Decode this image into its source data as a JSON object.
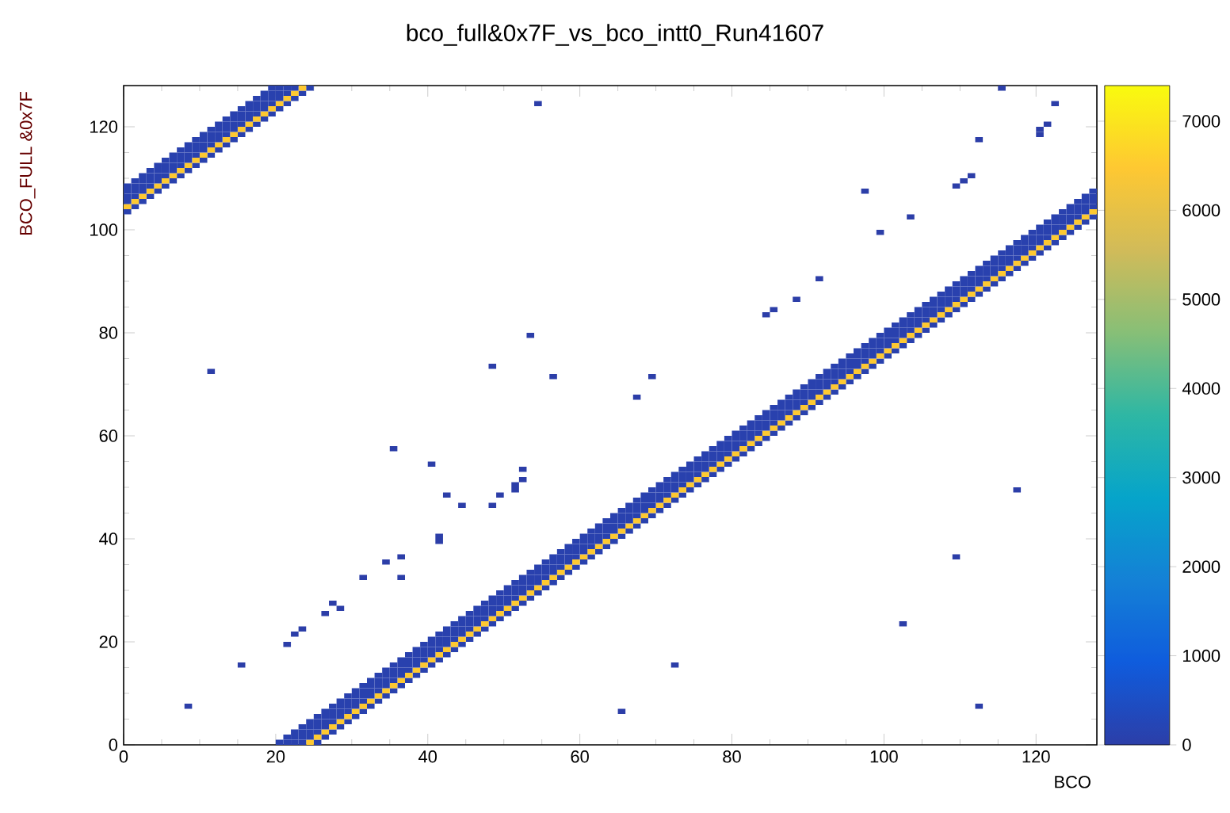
{
  "chart_data": {
    "type": "scatter",
    "title": "bco_full&0x7F_vs_bco_intt0_Run41607",
    "xlabel": "BCO",
    "ylabel": "BCO_FULL &0x7F",
    "xlim": [
      0,
      128
    ],
    "ylim": [
      0,
      128
    ],
    "xticks": [
      0,
      20,
      40,
      60,
      80,
      100,
      120
    ],
    "yticks": [
      0,
      20,
      40,
      60,
      80,
      100,
      120
    ],
    "clim": [
      0,
      7400
    ],
    "cticks": [
      0,
      1000,
      2000,
      3000,
      4000,
      5000,
      6000,
      7000
    ],
    "x": [
      0.5,
      1.5,
      2.5,
      3.5,
      4.5,
      5.5,
      6.5,
      7.5,
      8.5,
      9.5,
      10.5,
      11.5,
      12.5,
      13.5,
      14.5,
      15.5,
      16.5,
      17.5,
      18.5,
      19.5,
      20.5,
      21.5,
      22.5,
      23.5,
      24.5,
      25.5,
      26.5,
      27.5,
      28.5,
      29.5,
      30.5,
      31.5,
      32.5,
      33.5,
      34.5,
      35.5,
      36.5,
      37.5,
      38.5,
      39.5,
      40.5,
      41.5,
      42.5,
      43.5,
      44.5,
      45.5,
      46.5,
      47.5,
      48.5,
      49.5,
      50.5,
      51.5,
      52.5,
      53.5,
      54.5,
      55.5,
      56.5,
      57.5,
      58.5,
      59.5,
      60.5,
      61.5,
      62.5,
      63.5,
      64.5,
      65.5,
      66.5,
      67.5,
      68.5,
      69.5,
      70.5,
      71.5,
      72.5,
      73.5,
      74.5,
      75.5,
      76.5,
      77.5,
      78.5,
      79.5,
      80.5,
      81.5,
      82.5,
      83.5,
      84.5,
      85.5,
      86.5,
      87.5,
      88.5,
      89.5,
      90.5,
      91.5,
      92.5,
      93.5,
      94.5,
      95.5,
      96.5,
      97.5,
      98.5,
      99.5,
      100.5,
      101.5,
      102.5,
      103.5,
      104.5,
      105.5,
      106.5,
      107.5,
      108.5,
      109.5,
      110.5,
      111.5,
      112.5,
      113.5,
      114.5,
      115.5,
      116.5,
      117.5,
      118.5,
      119.5,
      120.5,
      121.5,
      122.5,
      123.5,
      124.5,
      125.5,
      126.5,
      127.5
    ],
    "series": [
      {
        "values": [
          103.5,
          104.5,
          105.5,
          106.5,
          107.5,
          108.5,
          109.5,
          110.5,
          111.5,
          112.5,
          113.5,
          114.5,
          115.5,
          116.5,
          117.5,
          118.5,
          119.5,
          120.5,
          121.5,
          122.5,
          123.5,
          124.5,
          125.5,
          126.5,
          127.5,
          0.5,
          1.5,
          2.5,
          3.5,
          4.5,
          5.5,
          6.5,
          7.5,
          8.5,
          9.5,
          10.5,
          11.5,
          12.5,
          13.5,
          14.5,
          15.5,
          16.5,
          17.5,
          18.5,
          19.5,
          20.5,
          21.5,
          22.5,
          23.5,
          24.5,
          25.5,
          26.5,
          27.5,
          28.5,
          29.5,
          30.5,
          31.5,
          32.5,
          33.5,
          34.5,
          35.5,
          36.5,
          37.5,
          38.5,
          39.5,
          40.5,
          41.5,
          42.5,
          43.5,
          44.5,
          45.5,
          46.5,
          47.5,
          48.5,
          49.5,
          50.5,
          51.5,
          52.5,
          53.5,
          54.5,
          55.5,
          56.5,
          57.5,
          58.5,
          59.5,
          60.5,
          61.5,
          62.5,
          63.5,
          64.5,
          65.5,
          66.5,
          67.5,
          68.5,
          69.5,
          70.5,
          71.5,
          72.5,
          73.5,
          74.5,
          75.5,
          76.5,
          77.5,
          78.5,
          79.5,
          80.5,
          81.5,
          82.5,
          83.5,
          84.5,
          85.5,
          86.5,
          87.5,
          88.5,
          89.5,
          90.5,
          91.5,
          92.5,
          93.5,
          94.5,
          95.5,
          96.5,
          97.5,
          98.5,
          99.5,
          100.5,
          101.5,
          102.5
        ],
        "cvalues": [
          100,
          100,
          100,
          100,
          100,
          100,
          100,
          100,
          100,
          100,
          100,
          100,
          100,
          100,
          100,
          100,
          100,
          100,
          100,
          100,
          100,
          100,
          100,
          100,
          100,
          100,
          100,
          100,
          100,
          100,
          100,
          100,
          100,
          100,
          100,
          100,
          100,
          100,
          100,
          100,
          100,
          100,
          100,
          100,
          100,
          100,
          100,
          100,
          100,
          100,
          100,
          100,
          100,
          100,
          100,
          100,
          100,
          100,
          100,
          100,
          100,
          100,
          100,
          100,
          100,
          100,
          100,
          100,
          100,
          100,
          100,
          100,
          100,
          100,
          100,
          100,
          100,
          100,
          100,
          100,
          100,
          100,
          100,
          100,
          100,
          100,
          100,
          100,
          100,
          100,
          100,
          100,
          100,
          100,
          100,
          100,
          100,
          100,
          100,
          100,
          100,
          100,
          100,
          100,
          100,
          100,
          100,
          100,
          100,
          100,
          100,
          100,
          100,
          100,
          100,
          100,
          100,
          100,
          100,
          100,
          100,
          100,
          100,
          100,
          100,
          100,
          100,
          100
        ]
      },
      {
        "values": [
          104.5,
          105.5,
          106.5,
          107.5,
          108.5,
          109.5,
          110.5,
          111.5,
          112.5,
          113.5,
          114.5,
          115.5,
          116.5,
          117.5,
          118.5,
          119.5,
          120.5,
          121.5,
          122.5,
          123.5,
          124.5,
          125.5,
          126.5,
          127.5,
          0.5,
          1.5,
          2.5,
          3.5,
          4.5,
          5.5,
          6.5,
          7.5,
          8.5,
          9.5,
          10.5,
          11.5,
          12.5,
          13.5,
          14.5,
          15.5,
          16.5,
          17.5,
          18.5,
          19.5,
          20.5,
          21.5,
          22.5,
          23.5,
          24.5,
          25.5,
          26.5,
          27.5,
          28.5,
          29.5,
          30.5,
          31.5,
          32.5,
          33.5,
          34.5,
          35.5,
          36.5,
          37.5,
          38.5,
          39.5,
          40.5,
          41.5,
          42.5,
          43.5,
          44.5,
          45.5,
          46.5,
          47.5,
          48.5,
          49.5,
          50.5,
          51.5,
          52.5,
          53.5,
          54.5,
          55.5,
          56.5,
          57.5,
          58.5,
          59.5,
          60.5,
          61.5,
          62.5,
          63.5,
          64.5,
          65.5,
          66.5,
          67.5,
          68.5,
          69.5,
          70.5,
          71.5,
          72.5,
          73.5,
          74.5,
          75.5,
          76.5,
          77.5,
          78.5,
          79.5,
          80.5,
          81.5,
          82.5,
          83.5,
          84.5,
          85.5,
          86.5,
          87.5,
          88.5,
          89.5,
          90.5,
          91.5,
          92.5,
          93.5,
          94.5,
          95.5,
          96.5,
          97.5,
          98.5,
          99.5,
          100.5,
          101.5,
          102.5,
          103.5
        ],
        "cvalues": [
          6500,
          6500,
          6500,
          6500,
          6500,
          6500,
          6500,
          6500,
          6500,
          6500,
          6500,
          6500,
          6500,
          6500,
          6500,
          6500,
          6500,
          6500,
          6500,
          6500,
          6500,
          6500,
          6500,
          6500,
          6500,
          6500,
          6500,
          6500,
          6500,
          6500,
          6500,
          6500,
          6500,
          6500,
          6500,
          6500,
          6500,
          6500,
          6500,
          6500,
          6500,
          6500,
          6500,
          6500,
          6500,
          6500,
          6500,
          6500,
          6500,
          6500,
          6500,
          6500,
          6500,
          6500,
          6500,
          6500,
          6500,
          6500,
          6500,
          6500,
          6500,
          6500,
          6500,
          6500,
          6500,
          6500,
          6500,
          6500,
          6500,
          6500,
          6500,
          6500,
          6500,
          6500,
          6500,
          6500,
          6500,
          6500,
          6500,
          6500,
          6500,
          6500,
          6500,
          6500,
          6500,
          6500,
          6500,
          6500,
          6500,
          6500,
          6500,
          6500,
          6500,
          6500,
          6500,
          6500,
          6500,
          6500,
          6500,
          6500,
          6500,
          6500,
          6500,
          6500,
          6500,
          6500,
          6500,
          6500,
          6500,
          6500,
          6500,
          6500,
          6500,
          6500,
          6500,
          6500,
          6500,
          6500,
          6500,
          6500,
          6500,
          6500,
          6500,
          6500,
          6500,
          6500,
          6500,
          6500
        ]
      },
      {
        "values": [
          105.5,
          106.5,
          107.5,
          108.5,
          109.5,
          110.5,
          111.5,
          112.5,
          113.5,
          114.5,
          115.5,
          116.5,
          117.5,
          118.5,
          119.5,
          120.5,
          121.5,
          122.5,
          123.5,
          124.5,
          125.5,
          126.5,
          127.5,
          0.5,
          1.5,
          2.5,
          3.5,
          4.5,
          5.5,
          6.5,
          7.5,
          8.5,
          9.5,
          10.5,
          11.5,
          12.5,
          13.5,
          14.5,
          15.5,
          16.5,
          17.5,
          18.5,
          19.5,
          20.5,
          21.5,
          22.5,
          23.5,
          24.5,
          25.5,
          26.5,
          27.5,
          28.5,
          29.5,
          30.5,
          31.5,
          32.5,
          33.5,
          34.5,
          35.5,
          36.5,
          37.5,
          38.5,
          39.5,
          40.5,
          41.5,
          42.5,
          43.5,
          44.5,
          45.5,
          46.5,
          47.5,
          48.5,
          49.5,
          50.5,
          51.5,
          52.5,
          53.5,
          54.5,
          55.5,
          56.5,
          57.5,
          58.5,
          59.5,
          60.5,
          61.5,
          62.5,
          63.5,
          64.5,
          65.5,
          66.5,
          67.5,
          68.5,
          69.5,
          70.5,
          71.5,
          72.5,
          73.5,
          74.5,
          75.5,
          76.5,
          77.5,
          78.5,
          79.5,
          80.5,
          81.5,
          82.5,
          83.5,
          84.5,
          85.5,
          86.5,
          87.5,
          88.5,
          89.5,
          90.5,
          91.5,
          92.5,
          93.5,
          94.5,
          95.5,
          96.5,
          97.5,
          98.5,
          99.5,
          100.5,
          101.5,
          102.5,
          103.5,
          104.5
        ],
        "cvalues": [
          100,
          100,
          100,
          100,
          100,
          100,
          100,
          100,
          100,
          100,
          100,
          100,
          100,
          100,
          100,
          100,
          100,
          100,
          100,
          100,
          100,
          100,
          100,
          100,
          100,
          100,
          100,
          100,
          100,
          100,
          100,
          100,
          100,
          100,
          100,
          100,
          100,
          100,
          100,
          100,
          100,
          100,
          100,
          100,
          100,
          100,
          100,
          100,
          100,
          100,
          100,
          100,
          100,
          100,
          100,
          100,
          100,
          100,
          100,
          100,
          100,
          100,
          100,
          100,
          100,
          100,
          100,
          100,
          100,
          100,
          100,
          100,
          100,
          100,
          100,
          100,
          100,
          100,
          100,
          100,
          100,
          100,
          100,
          100,
          100,
          100,
          100,
          100,
          100,
          100,
          100,
          100,
          100,
          100,
          100,
          100,
          100,
          100,
          100,
          100,
          100,
          100,
          100,
          100,
          100,
          100,
          100,
          100,
          100,
          100,
          100,
          100,
          100,
          100,
          100,
          100,
          100,
          100,
          100,
          100,
          100,
          100,
          100,
          100,
          100,
          100,
          100,
          100
        ]
      },
      {
        "values": [
          106.5,
          107.5,
          108.5,
          109.5,
          110.5,
          111.5,
          112.5,
          113.5,
          114.5,
          115.5,
          116.5,
          117.5,
          118.5,
          119.5,
          120.5,
          121.5,
          122.5,
          123.5,
          124.5,
          125.5,
          126.5,
          127.5,
          0.5,
          1.5,
          2.5,
          3.5,
          4.5,
          5.5,
          6.5,
          7.5,
          8.5,
          9.5,
          10.5,
          11.5,
          12.5,
          13.5,
          14.5,
          15.5,
          16.5,
          17.5,
          18.5,
          19.5,
          20.5,
          21.5,
          22.5,
          23.5,
          24.5,
          25.5,
          26.5,
          27.5,
          28.5,
          29.5,
          30.5,
          31.5,
          32.5,
          33.5,
          34.5,
          35.5,
          36.5,
          37.5,
          38.5,
          39.5,
          40.5,
          41.5,
          42.5,
          43.5,
          44.5,
          45.5,
          46.5,
          47.5,
          48.5,
          49.5,
          50.5,
          51.5,
          52.5,
          53.5,
          54.5,
          55.5,
          56.5,
          57.5,
          58.5,
          59.5,
          60.5,
          61.5,
          62.5,
          63.5,
          64.5,
          65.5,
          66.5,
          67.5,
          68.5,
          69.5,
          70.5,
          71.5,
          72.5,
          73.5,
          74.5,
          75.5,
          76.5,
          77.5,
          78.5,
          79.5,
          80.5,
          81.5,
          82.5,
          83.5,
          84.5,
          85.5,
          86.5,
          87.5,
          88.5,
          89.5,
          90.5,
          91.5,
          92.5,
          93.5,
          94.5,
          95.5,
          96.5,
          97.5,
          98.5,
          99.5,
          100.5,
          101.5,
          102.5,
          103.5,
          104.5,
          105.5
        ],
        "cvalues": [
          100,
          100,
          100,
          100,
          100,
          100,
          100,
          100,
          100,
          100,
          100,
          100,
          100,
          100,
          100,
          100,
          100,
          100,
          100,
          100,
          100,
          100,
          100,
          100,
          100,
          100,
          100,
          100,
          100,
          100,
          100,
          100,
          100,
          100,
          100,
          100,
          100,
          100,
          100,
          100,
          100,
          100,
          100,
          100,
          100,
          100,
          100,
          100,
          100,
          100,
          100,
          100,
          100,
          100,
          100,
          100,
          100,
          100,
          100,
          100,
          100,
          100,
          100,
          100,
          100,
          100,
          100,
          100,
          100,
          100,
          100,
          100,
          100,
          100,
          100,
          100,
          100,
          100,
          100,
          100,
          100,
          100,
          100,
          100,
          100,
          100,
          100,
          100,
          100,
          100,
          100,
          100,
          100,
          100,
          100,
          100,
          100,
          100,
          100,
          100,
          100,
          100,
          100,
          100,
          100,
          100,
          100,
          100,
          100,
          100,
          100,
          100,
          100,
          100,
          100,
          100,
          100,
          100,
          100,
          100,
          100,
          100,
          100,
          100,
          100,
          100,
          100,
          100
        ]
      },
      {
        "values": [
          107.5,
          108.5,
          109.5,
          110.5,
          111.5,
          112.5,
          113.5,
          114.5,
          115.5,
          116.5,
          117.5,
          118.5,
          119.5,
          120.5,
          121.5,
          122.5,
          123.5,
          124.5,
          125.5,
          126.5,
          127.5,
          0.5,
          1.5,
          2.5,
          3.5,
          4.5,
          5.5,
          6.5,
          7.5,
          8.5,
          9.5,
          10.5,
          11.5,
          12.5,
          13.5,
          14.5,
          15.5,
          16.5,
          17.5,
          18.5,
          19.5,
          20.5,
          21.5,
          22.5,
          23.5,
          24.5,
          25.5,
          26.5,
          27.5,
          28.5,
          29.5,
          30.5,
          31.5,
          32.5,
          33.5,
          34.5,
          35.5,
          36.5,
          37.5,
          38.5,
          39.5,
          40.5,
          41.5,
          42.5,
          43.5,
          44.5,
          45.5,
          46.5,
          47.5,
          48.5,
          49.5,
          50.5,
          51.5,
          52.5,
          53.5,
          54.5,
          55.5,
          56.5,
          57.5,
          58.5,
          59.5,
          60.5,
          61.5,
          62.5,
          63.5,
          64.5,
          65.5,
          66.5,
          67.5,
          68.5,
          69.5,
          70.5,
          71.5,
          72.5,
          73.5,
          74.5,
          75.5,
          76.5,
          77.5,
          78.5,
          79.5,
          80.5,
          81.5,
          82.5,
          83.5,
          84.5,
          85.5,
          86.5,
          87.5,
          88.5,
          89.5,
          90.5,
          91.5,
          92.5,
          93.5,
          94.5,
          95.5,
          96.5,
          97.5,
          98.5,
          99.5,
          100.5,
          101.5,
          102.5,
          103.5,
          104.5,
          105.5,
          106.5
        ],
        "cvalues": [
          100,
          100,
          100,
          100,
          100,
          100,
          100,
          100,
          100,
          100,
          100,
          100,
          100,
          100,
          100,
          100,
          100,
          100,
          100,
          100,
          100,
          100,
          100,
          100,
          100,
          100,
          100,
          100,
          100,
          100,
          100,
          100,
          100,
          100,
          100,
          100,
          100,
          100,
          100,
          100,
          100,
          100,
          100,
          100,
          100,
          100,
          100,
          100,
          100,
          100,
          100,
          100,
          100,
          100,
          100,
          100,
          100,
          100,
          100,
          100,
          100,
          100,
          100,
          100,
          100,
          100,
          100,
          100,
          100,
          100,
          100,
          100,
          100,
          100,
          100,
          100,
          100,
          100,
          100,
          100,
          100,
          100,
          100,
          100,
          100,
          100,
          100,
          100,
          100,
          100,
          100,
          100,
          100,
          100,
          100,
          100,
          100,
          100,
          100,
          100,
          100,
          100,
          100,
          100,
          100,
          100,
          100,
          100,
          100,
          100,
          100,
          100,
          100,
          100,
          100,
          100,
          100,
          100,
          100,
          100,
          100,
          100,
          100,
          100,
          100,
          100,
          100,
          100
        ]
      },
      {
        "values": [
          108.5,
          109.5,
          110.5,
          111.5,
          112.5,
          113.5,
          114.5,
          115.5,
          116.5,
          117.5,
          118.5,
          119.5,
          120.5,
          121.5,
          122.5,
          123.5,
          124.5,
          125.5,
          126.5,
          127.5,
          0.5,
          1.5,
          2.5,
          3.5,
          4.5,
          5.5,
          6.5,
          7.5,
          8.5,
          9.5,
          10.5,
          11.5,
          12.5,
          13.5,
          14.5,
          15.5,
          16.5,
          17.5,
          18.5,
          19.5,
          20.5,
          21.5,
          22.5,
          23.5,
          24.5,
          25.5,
          26.5,
          27.5,
          28.5,
          29.5,
          30.5,
          31.5,
          32.5,
          33.5,
          34.5,
          35.5,
          36.5,
          37.5,
          38.5,
          39.5,
          40.5,
          41.5,
          42.5,
          43.5,
          44.5,
          45.5,
          46.5,
          47.5,
          48.5,
          49.5,
          50.5,
          51.5,
          52.5,
          53.5,
          54.5,
          55.5,
          56.5,
          57.5,
          58.5,
          59.5,
          60.5,
          61.5,
          62.5,
          63.5,
          64.5,
          65.5,
          66.5,
          67.5,
          68.5,
          69.5,
          70.5,
          71.5,
          72.5,
          73.5,
          74.5,
          75.5,
          76.5,
          77.5,
          78.5,
          79.5,
          80.5,
          81.5,
          82.5,
          83.5,
          84.5,
          85.5,
          86.5,
          87.5,
          88.5,
          89.5,
          90.5,
          91.5,
          92.5,
          93.5,
          94.5,
          95.5,
          96.5,
          97.5,
          98.5,
          99.5,
          100.5,
          101.5,
          102.5,
          103.5,
          104.5,
          105.5,
          106.5,
          107.5
        ],
        "cvalues": [
          100,
          100,
          100,
          100,
          100,
          100,
          100,
          100,
          100,
          100,
          100,
          100,
          100,
          100,
          100,
          100,
          100,
          100,
          100,
          100,
          100,
          100,
          100,
          100,
          100,
          100,
          100,
          100,
          100,
          100,
          100,
          100,
          100,
          100,
          100,
          100,
          100,
          100,
          100,
          100,
          100,
          100,
          100,
          100,
          100,
          100,
          100,
          100,
          100,
          100,
          100,
          100,
          100,
          100,
          100,
          100,
          100,
          100,
          100,
          100,
          100,
          100,
          100,
          100,
          100,
          100,
          100,
          100,
          100,
          100,
          100,
          100,
          100,
          100,
          100,
          100,
          100,
          100,
          100,
          100,
          100,
          100,
          100,
          100,
          100,
          100,
          100,
          100,
          100,
          100,
          100,
          100,
          100,
          100,
          100,
          100,
          100,
          100,
          100,
          100,
          100,
          100,
          100,
          100,
          100,
          100,
          100,
          100,
          100,
          100,
          100,
          100,
          100,
          100,
          100,
          100,
          100,
          100,
          100,
          100,
          100,
          100,
          100,
          100,
          100,
          100,
          100,
          100
        ]
      },
      {
        "x": [
          8.5,
          11.5,
          15.5,
          21.5,
          22.5,
          23.5,
          26.5,
          27.5,
          28.5,
          31.5,
          34.5,
          35.5,
          36.5,
          36.5,
          40.5,
          41.5,
          41.5,
          42.5,
          44.5,
          48.5,
          48.5,
          49.5,
          51.5,
          51.5,
          52.5,
          52.5,
          53.5,
          54.5,
          56.5,
          65.5,
          67.5,
          69.5,
          72.5,
          84.5,
          85.5,
          88.5,
          91.5,
          97.5,
          99.5,
          102.5,
          103.5,
          109.5,
          109.5,
          110.5,
          111.5,
          112.5,
          112.5,
          115.5,
          117.5,
          120.5,
          120.5,
          121.5,
          122.5
        ],
        "values": [
          7.5,
          72.5,
          15.5,
          19.5,
          21.5,
          22.5,
          25.5,
          27.5,
          26.5,
          32.5,
          35.5,
          57.5,
          36.5,
          32.5,
          54.5,
          40.5,
          39.5,
          48.5,
          46.5,
          46.5,
          73.5,
          48.5,
          50.5,
          49.5,
          51.5,
          53.5,
          79.5,
          124.5,
          71.5,
          6.5,
          67.5,
          71.5,
          15.5,
          83.5,
          84.5,
          86.5,
          90.5,
          107.5,
          99.5,
          23.5,
          102.5,
          36.5,
          108.5,
          109.5,
          110.5,
          117.5,
          7.5,
          127.5,
          49.5,
          118.5,
          119.5,
          120.5,
          124.5
        ],
        "cvalues": [
          1,
          1,
          1,
          1,
          1,
          1,
          1,
          1,
          1,
          1,
          1,
          1,
          1,
          1,
          1,
          1,
          1,
          1,
          1,
          1,
          1,
          1,
          1,
          1,
          1,
          1,
          1,
          1,
          1,
          1,
          1,
          1,
          1,
          1,
          1,
          1,
          1,
          1,
          1,
          1,
          1,
          1,
          1,
          1,
          1,
          1,
          1,
          1,
          1,
          1,
          1,
          1,
          1
        ]
      }
    ]
  }
}
